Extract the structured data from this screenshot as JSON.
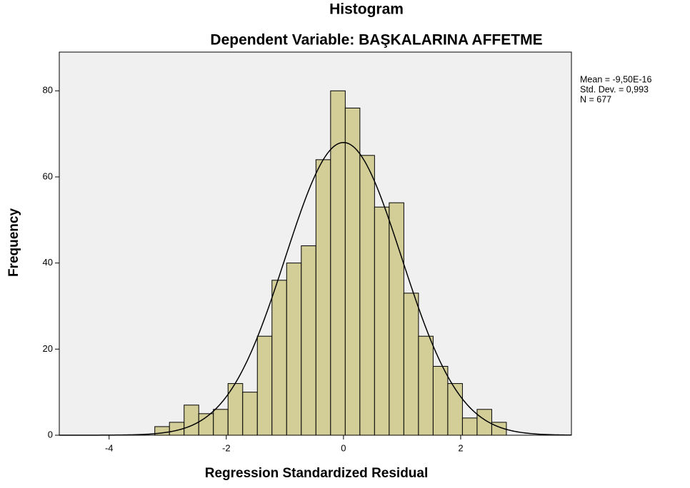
{
  "chart_data": {
    "type": "histogram",
    "title": "Histogram",
    "subtitle": "Dependent Variable: BAŞKALARINA AFFETME",
    "x_label": "Regression Standardized Residual",
    "y_label": "Frequency",
    "bins": [
      -3.22,
      -2.97,
      -2.72,
      -2.47,
      -2.22,
      -1.97,
      -1.72,
      -1.47,
      -1.22,
      -0.97,
      -0.72,
      -0.47,
      -0.22,
      0.03,
      0.28,
      0.53,
      0.78,
      1.03,
      1.28,
      1.53,
      1.78,
      2.03,
      2.28,
      2.53,
      2.78
    ],
    "values": [
      2,
      3,
      7,
      5,
      6,
      12,
      10,
      23,
      36,
      40,
      44,
      64,
      80,
      76,
      65,
      53,
      54,
      33,
      23,
      16,
      12,
      4,
      6,
      3
    ],
    "color": "#d3ce97",
    "stats": [
      {
        "value": -9.5e-16,
        "label": "Mean = -9,50E-16"
      },
      {
        "value": 0.993,
        "label": "Std. Dev. = 0,993"
      },
      {
        "value": 677,
        "label": "N = 677"
      }
    ],
    "xlim": [
      -4.85,
      3.89
    ],
    "xticks": [
      -4,
      -2,
      0,
      2
    ],
    "ylim": [
      0,
      89
    ],
    "yticks": [
      0,
      20,
      40,
      60,
      80
    ]
  }
}
